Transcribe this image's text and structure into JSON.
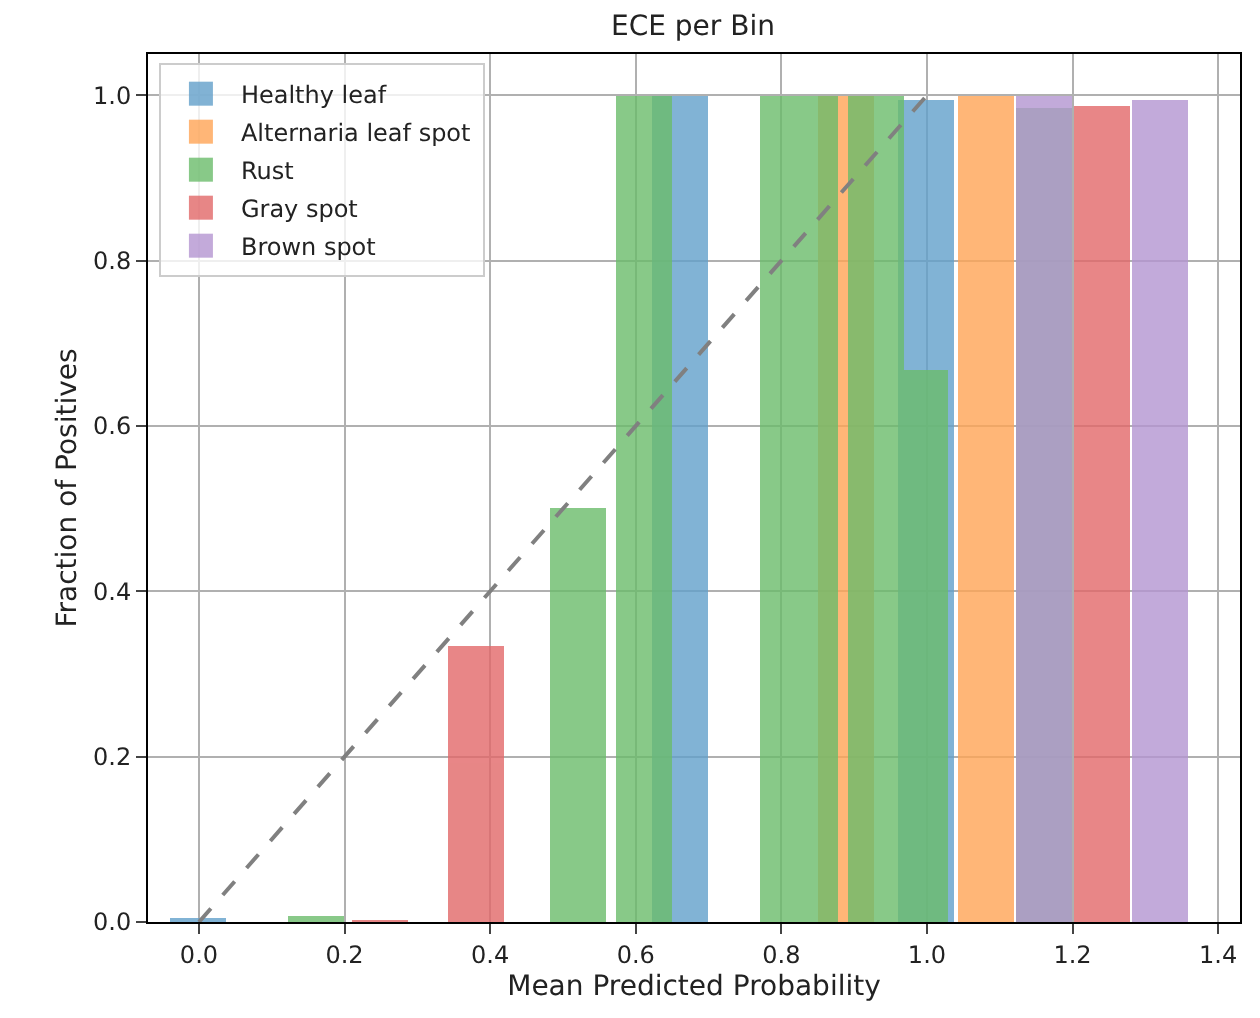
{
  "chart_data": {
    "type": "bar",
    "title": "ECE per Bin",
    "xlabel": "Mean Predicted Probability",
    "ylabel": "Fraction of Positives",
    "xlim": [
      -0.07,
      1.43
    ],
    "xticks": [
      {
        "value": 0,
        "label": "0.0"
      },
      0.2,
      0.4,
      0.6,
      0.8,
      {
        "value": 1,
        "label": "1.0"
      },
      1.2,
      1.4
    ],
    "ylim": [
      0,
      1.05
    ],
    "yticks": [
      {
        "value": 0,
        "label": "0.0"
      },
      0.2,
      0.4,
      0.6,
      0.8,
      {
        "value": 1,
        "label": "1.0"
      }
    ],
    "grid": true,
    "legend": "top left",
    "series": [
      {
        "name": "Healthy leaf",
        "color": "#62a0ca",
        "x": [
          0.0,
          0.66,
          1.0
        ],
        "values": [
          0.003,
          1.0,
          0.995
        ]
      },
      {
        "name": "Alternaria leaf spot",
        "color": "#ffa556",
        "x": [
          0.89,
          1.08
        ],
        "values": [
          1.0,
          1.0
        ]
      },
      {
        "name": "Rust",
        "color": "#6bbc6b",
        "x": [
          0.16,
          0.52,
          0.61,
          0.81,
          0.84,
          0.93,
          0.99,
          1.16
        ],
        "values": [
          0.007,
          0.5,
          1.0,
          1.0,
          1.0,
          1.0,
          0.667,
          0.985
        ]
      },
      {
        "name": "Gray spot",
        "color": "#e26869",
        "x": [
          0.25,
          0.38,
          1.24
        ],
        "values": [
          0.002,
          0.335,
          0.988
        ]
      },
      {
        "name": "Brown spot",
        "color": "#b495d1",
        "x": [
          1.16,
          1.32
        ],
        "values": [
          1.0,
          0.995
        ]
      },
      {
        "type": "line",
        "color": "#808080",
        "line_style": "dashed",
        "marker": "none",
        "x": [
          0,
          1
        ],
        "values": [
          0,
          1
        ]
      }
    ]
  }
}
